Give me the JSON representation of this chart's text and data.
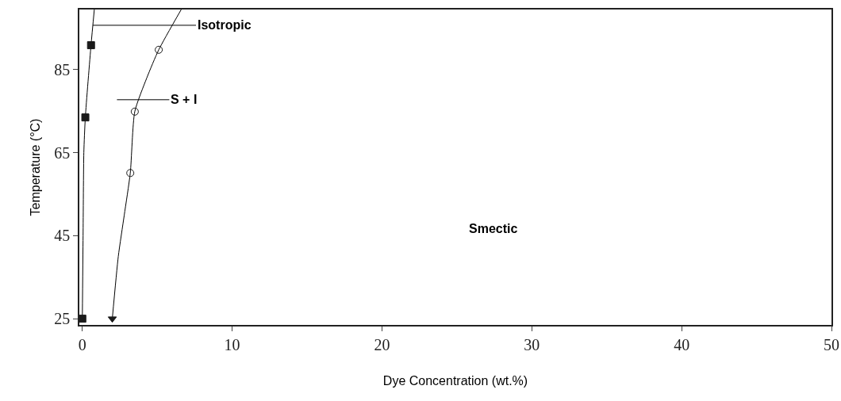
{
  "chart_data": {
    "type": "scatter",
    "xlabel": "Dye Concentration (wt.%)",
    "ylabel": "Temperature (°C)",
    "xlim": [
      -0.2,
      50
    ],
    "xticks": [
      0,
      10,
      20,
      30,
      40,
      50
    ],
    "ylim": [
      23.5,
      99.5
    ],
    "yticks": [
      25,
      45,
      65,
      85
    ],
    "grid": false,
    "series": [
      {
        "type": "line",
        "color": "#000000",
        "x": [
          0,
          0.05,
          0.1,
          0.2,
          0.58,
          0.8
        ],
        "values": [
          25,
          45,
          65,
          73.5,
          90.9,
          99.5
        ]
      },
      {
        "type": "line",
        "color": "#000000",
        "x": [
          2.0,
          2.4,
          2.8,
          3.2,
          3.5,
          4.3,
          5.1,
          6.6
        ],
        "values": [
          25,
          40,
          50,
          60.1,
          74.9,
          83,
          89.8,
          99.5
        ]
      },
      {
        "color": "#1a1a1a",
        "marker": "square",
        "x": [
          0,
          0.2,
          0.58
        ],
        "values": [
          25,
          73.5,
          90.9
        ]
      },
      {
        "color": "#1a1a1a",
        "marker": "circle",
        "x": [
          3.2,
          3.5,
          5.1
        ],
        "values": [
          60.1,
          74.9,
          89.8
        ]
      },
      {
        "color": "#1a1a1a",
        "marker": "triangle",
        "x": [
          2.0
        ],
        "values": [
          25
        ]
      }
    ],
    "annotations": [
      {
        "text": "Isotropic",
        "x": 0.7,
        "y": 95.7
      },
      "S + I",
      "Smectic"
    ]
  }
}
